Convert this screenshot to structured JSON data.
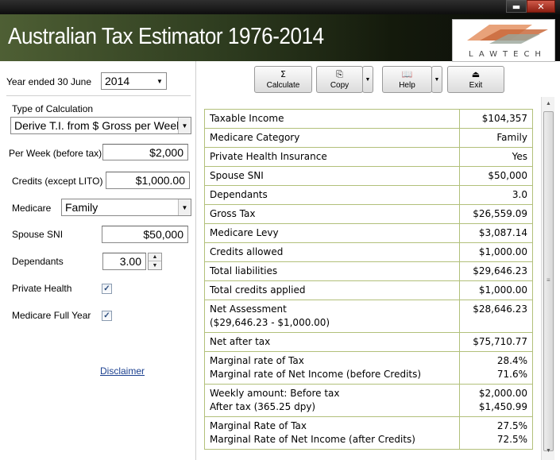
{
  "window": {
    "minimize": "▬",
    "close": "✕"
  },
  "banner": {
    "title": "Australian Tax Estimator 1976-2014",
    "logo_text": "LAWTECH"
  },
  "form": {
    "year_label": "Year ended 30 June",
    "year_value": "2014",
    "calc_type_label": "Type of Calculation",
    "calc_type_value": "Derive T.I. from $ Gross per Week",
    "per_week_label": "Per Week (before tax)",
    "per_week_value": "$2,000",
    "credits_label": "Credits (except LITO)",
    "credits_value": "$1,000.00",
    "medicare_label": "Medicare",
    "medicare_value": "Family",
    "spouse_sni_label": "Spouse SNI",
    "spouse_sni_value": "$50,000",
    "dependants_label": "Dependants",
    "dependants_value": "3.00",
    "private_health_label": "Private Health",
    "private_health_checked": true,
    "medicare_full_year_label": "Medicare Full Year",
    "medicare_full_year_checked": true,
    "disclaimer": "Disclaimer"
  },
  "toolbar": {
    "calculate": {
      "icon": "Σ",
      "label": "Calculate"
    },
    "copy": {
      "icon": "⎘",
      "label": "Copy"
    },
    "help": {
      "icon": "📖",
      "label": "Help"
    },
    "exit": {
      "icon": "⏏",
      "label": "Exit"
    }
  },
  "results": [
    {
      "label": [
        "Taxable Income"
      ],
      "value": [
        "$104,357"
      ]
    },
    {
      "label": [
        "Medicare Category"
      ],
      "value": [
        "Family"
      ]
    },
    {
      "label": [
        "Private Health Insurance"
      ],
      "value": [
        "Yes"
      ]
    },
    {
      "label": [
        "Spouse SNI"
      ],
      "value": [
        "$50,000"
      ]
    },
    {
      "label": [
        "Dependants"
      ],
      "value": [
        "3.0"
      ]
    },
    {
      "label": [
        "Gross Tax"
      ],
      "value": [
        "$26,559.09"
      ]
    },
    {
      "label": [
        "Medicare Levy"
      ],
      "value": [
        "$3,087.14"
      ]
    },
    {
      "label": [
        "Credits allowed"
      ],
      "value": [
        "$1,000.00"
      ]
    },
    {
      "label": [
        "Total liabilities"
      ],
      "value": [
        "$29,646.23"
      ]
    },
    {
      "label": [
        "Total credits applied"
      ],
      "value": [
        "$1,000.00"
      ]
    },
    {
      "label": [
        "Net Assessment",
        "($29,646.23 - $1,000.00)"
      ],
      "value": [
        "$28,646.23"
      ]
    },
    {
      "label": [
        "Net after tax"
      ],
      "value": [
        "$75,710.77"
      ]
    },
    {
      "label": [
        "Marginal rate of Tax",
        "Marginal rate of Net Income (before Credits)"
      ],
      "value": [
        "28.4%",
        "71.6%"
      ]
    },
    {
      "label": [
        "Weekly amount: Before tax",
        "After tax (365.25 dpy)"
      ],
      "value": [
        "$2,000.00",
        "$1,450.99"
      ]
    },
    {
      "label": [
        "Marginal Rate of Tax",
        "Marginal Rate of Net Income (after Credits)"
      ],
      "value": [
        "27.5%",
        "72.5%"
      ]
    }
  ],
  "scrollbar": {
    "up": "▲",
    "down": "▼",
    "grip": "≡"
  }
}
